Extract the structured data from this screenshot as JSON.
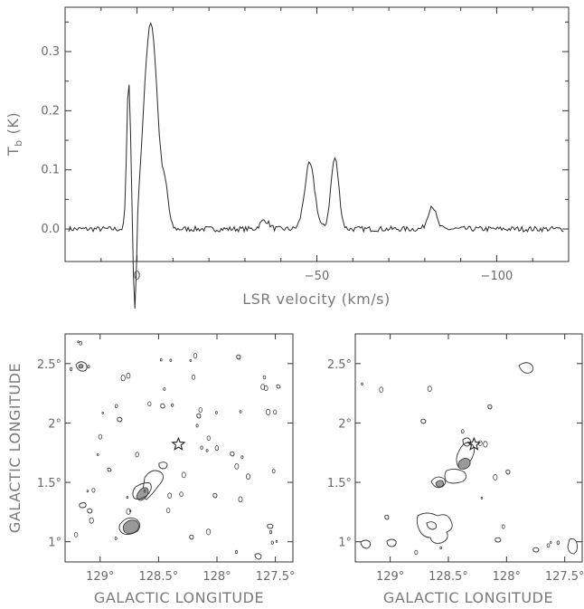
{
  "chart_data": [
    {
      "type": "line",
      "ylabel_main": "T",
      "ylabel_sub": "b",
      "ylabel_unit": "(K)",
      "xlabel": "LSR velocity (km/s)",
      "xlim": [
        20,
        -120
      ],
      "ylim": [
        -0.055,
        0.375
      ],
      "xticks": [
        0,
        -50,
        -100
      ],
      "xtick_labels": [
        "0",
        "−50",
        "−100"
      ],
      "yticks": [
        0.0,
        0.1,
        0.2,
        0.3
      ],
      "ytick_labels": [
        "0.0",
        "0.1",
        "0.2",
        "0.3"
      ],
      "peaks": [
        {
          "center": 2.3,
          "height": 0.25,
          "sigma": 0.55
        },
        {
          "center": -3.8,
          "height": 0.35,
          "sigma": 1.9
        },
        {
          "center": -8.0,
          "height": 0.05,
          "sigma": 0.8
        },
        {
          "center": -35.5,
          "height": 0.015,
          "sigma": 1.2
        },
        {
          "center": -48.0,
          "height": 0.11,
          "sigma": 1.4
        },
        {
          "center": -55.0,
          "height": 0.12,
          "sigma": 1.1
        },
        {
          "center": -82.0,
          "height": 0.04,
          "sigma": 1.1
        }
      ]
    },
    {
      "type": "contour",
      "xlabel": "GALACTIC LONGITUDE",
      "ylabel": "GALACTIC LONGITUDE",
      "xlim": [
        129.3,
        127.35
      ],
      "ylim": [
        0.83,
        2.75
      ],
      "xtick_labels": [
        "129°",
        "128.5°",
        "128°",
        "127.5°"
      ],
      "xtick_values": [
        129.0,
        128.5,
        128.0,
        127.5
      ],
      "ytick_labels": [
        "1°",
        "1.5°",
        "2°",
        "2.5°"
      ],
      "ytick_values": [
        1.0,
        1.5,
        2.0,
        2.5
      ],
      "star": {
        "l": 128.33,
        "b": 1.82
      }
    },
    {
      "type": "contour",
      "xlabel": "GALACTIC LONGITUDE",
      "ylabel": "",
      "xlim": [
        129.3,
        127.35
      ],
      "ylim": [
        0.83,
        2.75
      ],
      "xtick_labels": [
        "129°",
        "128.5°",
        "128°",
        "127.5°"
      ],
      "xtick_values": [
        129.0,
        128.5,
        128.0,
        127.5
      ],
      "ytick_labels": [
        "1°",
        "1.5°",
        "2°",
        "2.5°"
      ],
      "ytick_values": [
        1.0,
        1.5,
        2.0,
        2.5
      ],
      "star": {
        "l": 128.28,
        "b": 1.82
      }
    }
  ]
}
